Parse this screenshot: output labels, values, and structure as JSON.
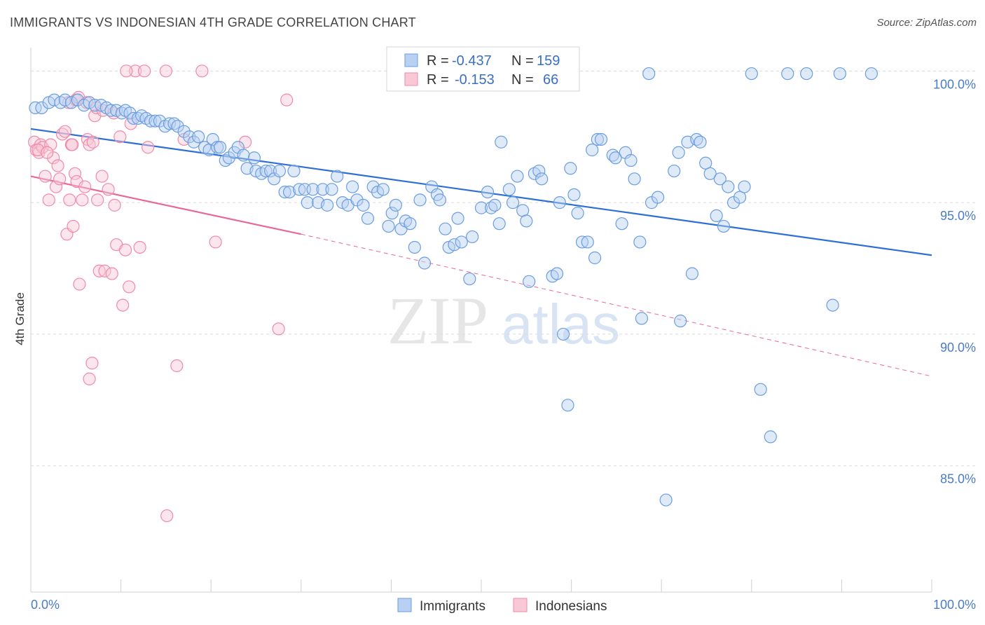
{
  "title": "IMMIGRANTS VS INDONESIAN 4TH GRADE CORRELATION CHART",
  "source": "Source: ZipAtlas.com",
  "watermark": {
    "zip": "ZIP",
    "atlas": "atlas"
  },
  "chart_data": {
    "type": "scatter",
    "xlabel": "",
    "ylabel": "4th Grade",
    "xlim": [
      0,
      100
    ],
    "ylim": [
      80.2,
      101.1
    ],
    "x_tick_labels": [
      "0.0%",
      "100.0%"
    ],
    "y_ticks": [
      85,
      90,
      95,
      100
    ],
    "y_tick_labels": [
      "85.0%",
      "90.0%",
      "95.0%",
      "100.0%"
    ],
    "grid": "horizontal dashed",
    "legend_position": "top-center",
    "legend": [
      {
        "name": "Immigrants",
        "r_label": "R =",
        "r": "-0.437",
        "n_label": "N =",
        "n": "159",
        "color": "#6b9de0"
      },
      {
        "name": "Indonesians",
        "r_label": "R =",
        "r": "-0.153",
        "n_label": "N =",
        "n": "66",
        "color": "#f08aa8"
      }
    ],
    "series": [
      {
        "name": "Immigrants",
        "color": "#6b9de0",
        "trend": {
          "x0": 0,
          "y0": 97.8,
          "x1": 100,
          "y1": 93.0
        },
        "points": [
          [
            0.5,
            98.6
          ],
          [
            1.2,
            98.6
          ],
          [
            2.0,
            98.8
          ],
          [
            2.6,
            98.9
          ],
          [
            3.3,
            98.8
          ],
          [
            3.8,
            98.9
          ],
          [
            4.5,
            98.8
          ],
          [
            5.2,
            98.9
          ],
          [
            5.9,
            98.7
          ],
          [
            6.5,
            98.8
          ],
          [
            7.1,
            98.7
          ],
          [
            7.8,
            98.7
          ],
          [
            8.4,
            98.6
          ],
          [
            8.9,
            98.5
          ],
          [
            9.5,
            98.5
          ],
          [
            10.1,
            98.4
          ],
          [
            10.5,
            98.5
          ],
          [
            11.0,
            98.4
          ],
          [
            11.4,
            98.2
          ],
          [
            11.9,
            98.2
          ],
          [
            12.3,
            98.3
          ],
          [
            12.8,
            98.2
          ],
          [
            13.3,
            98.1
          ],
          [
            13.8,
            98.1
          ],
          [
            14.3,
            98.1
          ],
          [
            14.9,
            97.9
          ],
          [
            15.4,
            98.0
          ],
          [
            15.9,
            98.0
          ],
          [
            16.3,
            97.9
          ],
          [
            17.0,
            97.7
          ],
          [
            17.6,
            97.5
          ],
          [
            18.1,
            97.3
          ],
          [
            18.6,
            97.5
          ],
          [
            19.3,
            97.1
          ],
          [
            19.8,
            97.0
          ],
          [
            20.2,
            97.4
          ],
          [
            20.7,
            97.1
          ],
          [
            21.0,
            97.1
          ],
          [
            21.6,
            96.6
          ],
          [
            22.0,
            96.7
          ],
          [
            22.6,
            96.9
          ],
          [
            23.0,
            97.1
          ],
          [
            23.6,
            96.8
          ],
          [
            24.0,
            96.3
          ],
          [
            24.8,
            96.7
          ],
          [
            25.0,
            96.2
          ],
          [
            25.6,
            96.1
          ],
          [
            26.1,
            96.2
          ],
          [
            26.6,
            96.2
          ],
          [
            27.0,
            95.9
          ],
          [
            27.6,
            96.2
          ],
          [
            28.2,
            95.4
          ],
          [
            28.7,
            95.4
          ],
          [
            29.2,
            96.2
          ],
          [
            29.8,
            95.5
          ],
          [
            30.4,
            95.5
          ],
          [
            30.7,
            95.0
          ],
          [
            31.3,
            95.5
          ],
          [
            31.9,
            95.0
          ],
          [
            32.4,
            95.5
          ],
          [
            32.9,
            94.9
          ],
          [
            33.4,
            95.5
          ],
          [
            34.0,
            96.0
          ],
          [
            34.6,
            95.0
          ],
          [
            35.2,
            94.9
          ],
          [
            35.7,
            95.6
          ],
          [
            36.2,
            95.1
          ],
          [
            36.9,
            94.9
          ],
          [
            37.4,
            94.4
          ],
          [
            38.0,
            95.6
          ],
          [
            38.5,
            95.4
          ],
          [
            39.1,
            95.5
          ],
          [
            39.7,
            94.1
          ],
          [
            40.1,
            94.6
          ],
          [
            40.5,
            94.9
          ],
          [
            41.1,
            94.0
          ],
          [
            41.6,
            94.3
          ],
          [
            42.1,
            94.2
          ],
          [
            42.6,
            93.3
          ],
          [
            43.2,
            95.1
          ],
          [
            43.7,
            92.7
          ],
          [
            44.5,
            95.6
          ],
          [
            45.1,
            95.3
          ],
          [
            45.4,
            95.1
          ],
          [
            46.0,
            94.0
          ],
          [
            46.4,
            93.3
          ],
          [
            47.0,
            93.4
          ],
          [
            47.4,
            94.4
          ],
          [
            47.8,
            93.5
          ],
          [
            48.7,
            92.1
          ],
          [
            49.0,
            93.7
          ],
          [
            50.0,
            94.8
          ],
          [
            50.7,
            95.4
          ],
          [
            51.1,
            94.8
          ],
          [
            51.5,
            94.9
          ],
          [
            52.0,
            94.2
          ],
          [
            52.2,
            97.3
          ],
          [
            53.1,
            95.5
          ],
          [
            53.5,
            95.0
          ],
          [
            54.0,
            96.0
          ],
          [
            54.6,
            94.7
          ],
          [
            55.0,
            94.3
          ],
          [
            55.3,
            92.0
          ],
          [
            55.9,
            96.1
          ],
          [
            56.4,
            96.2
          ],
          [
            56.7,
            95.9
          ],
          [
            57.9,
            92.2
          ],
          [
            58.4,
            92.3
          ],
          [
            58.7,
            95.0
          ],
          [
            59.1,
            90.0
          ],
          [
            59.6,
            87.3
          ],
          [
            59.9,
            96.3
          ],
          [
            60.3,
            95.3
          ],
          [
            60.7,
            94.6
          ],
          [
            61.2,
            93.5
          ],
          [
            61.8,
            93.5
          ],
          [
            62.3,
            97.0
          ],
          [
            62.6,
            92.9
          ],
          [
            62.9,
            97.4
          ],
          [
            63.3,
            97.4
          ],
          [
            64.6,
            96.8
          ],
          [
            64.9,
            96.7
          ],
          [
            65.6,
            94.2
          ],
          [
            66.0,
            96.9
          ],
          [
            66.6,
            96.6
          ],
          [
            67.0,
            95.9
          ],
          [
            67.6,
            93.5
          ],
          [
            67.8,
            90.6
          ],
          [
            68.6,
            99.9
          ],
          [
            68.9,
            95.0
          ],
          [
            69.6,
            95.2
          ],
          [
            70.5,
            83.7
          ],
          [
            71.4,
            96.2
          ],
          [
            71.9,
            96.9
          ],
          [
            72.1,
            90.5
          ],
          [
            72.9,
            97.3
          ],
          [
            73.4,
            92.3
          ],
          [
            73.9,
            97.4
          ],
          [
            74.3,
            97.3
          ],
          [
            74.9,
            96.5
          ],
          [
            75.4,
            96.1
          ],
          [
            76.1,
            94.5
          ],
          [
            76.5,
            95.9
          ],
          [
            76.9,
            94.1
          ],
          [
            77.4,
            95.6
          ],
          [
            78.0,
            95.0
          ],
          [
            78.7,
            95.2
          ],
          [
            79.2,
            95.6
          ],
          [
            80.0,
            99.9
          ],
          [
            81.0,
            87.9
          ],
          [
            82.1,
            86.1
          ],
          [
            84.0,
            99.9
          ],
          [
            86.1,
            99.9
          ],
          [
            89.8,
            99.9
          ],
          [
            89.0,
            91.1
          ],
          [
            93.3,
            99.9
          ]
        ]
      },
      {
        "name": "Indonesians",
        "color": "#f08aa8",
        "trend": {
          "x0": 0,
          "y0": 96.0,
          "x1": 30,
          "y1": 93.8
        },
        "trend_dashed": {
          "x0": 30,
          "y0": 93.8,
          "x1": 100,
          "y1": 88.4
        },
        "points": [
          [
            0.4,
            97.3
          ],
          [
            0.6,
            97.0
          ],
          [
            0.9,
            96.9
          ],
          [
            1.1,
            97.2
          ],
          [
            1.3,
            97.1
          ],
          [
            1.6,
            96.0
          ],
          [
            2.0,
            95.1
          ],
          [
            2.2,
            97.2
          ],
          [
            2.5,
            96.7
          ],
          [
            2.8,
            95.6
          ],
          [
            3.0,
            96.4
          ],
          [
            3.2,
            95.9
          ],
          [
            3.5,
            97.6
          ],
          [
            3.8,
            97.7
          ],
          [
            4.0,
            93.8
          ],
          [
            4.3,
            95.1
          ],
          [
            4.5,
            97.2
          ],
          [
            4.7,
            94.1
          ],
          [
            4.9,
            96.1
          ],
          [
            5.1,
            95.8
          ],
          [
            5.4,
            91.9
          ],
          [
            5.7,
            95.1
          ],
          [
            6.0,
            95.6
          ],
          [
            6.3,
            97.4
          ],
          [
            6.5,
            97.2
          ],
          [
            6.9,
            97.3
          ],
          [
            7.1,
            98.3
          ],
          [
            7.4,
            95.1
          ],
          [
            7.6,
            92.4
          ],
          [
            7.9,
            96.0
          ],
          [
            8.2,
            92.4
          ],
          [
            8.6,
            95.5
          ],
          [
            9.0,
            92.3
          ],
          [
            9.3,
            94.9
          ],
          [
            9.5,
            93.4
          ],
          [
            9.9,
            97.5
          ],
          [
            10.2,
            91.1
          ],
          [
            10.5,
            93.2
          ],
          [
            10.9,
            91.8
          ],
          [
            11.1,
            98.0
          ],
          [
            11.6,
            100.0
          ],
          [
            12.1,
            93.3
          ],
          [
            12.6,
            100.0
          ],
          [
            13.0,
            97.1
          ],
          [
            15.0,
            100.0
          ],
          [
            15.1,
            83.1
          ],
          [
            16.2,
            88.8
          ],
          [
            17.0,
            97.4
          ],
          [
            19.0,
            100.0
          ],
          [
            20.5,
            93.5
          ],
          [
            23.8,
            97.3
          ],
          [
            27.5,
            90.2
          ],
          [
            28.4,
            98.9
          ],
          [
            6.8,
            88.9
          ],
          [
            6.5,
            88.3
          ],
          [
            4.2,
            98.8
          ],
          [
            4.6,
            97.2
          ],
          [
            5.0,
            98.9
          ],
          [
            5.3,
            99.0
          ],
          [
            6.2,
            98.8
          ],
          [
            7.3,
            98.6
          ],
          [
            8.0,
            98.5
          ],
          [
            9.2,
            98.4
          ],
          [
            10.6,
            100.0
          ],
          [
            0.8,
            97.0
          ],
          [
            1.8,
            96.9
          ]
        ]
      }
    ]
  }
}
